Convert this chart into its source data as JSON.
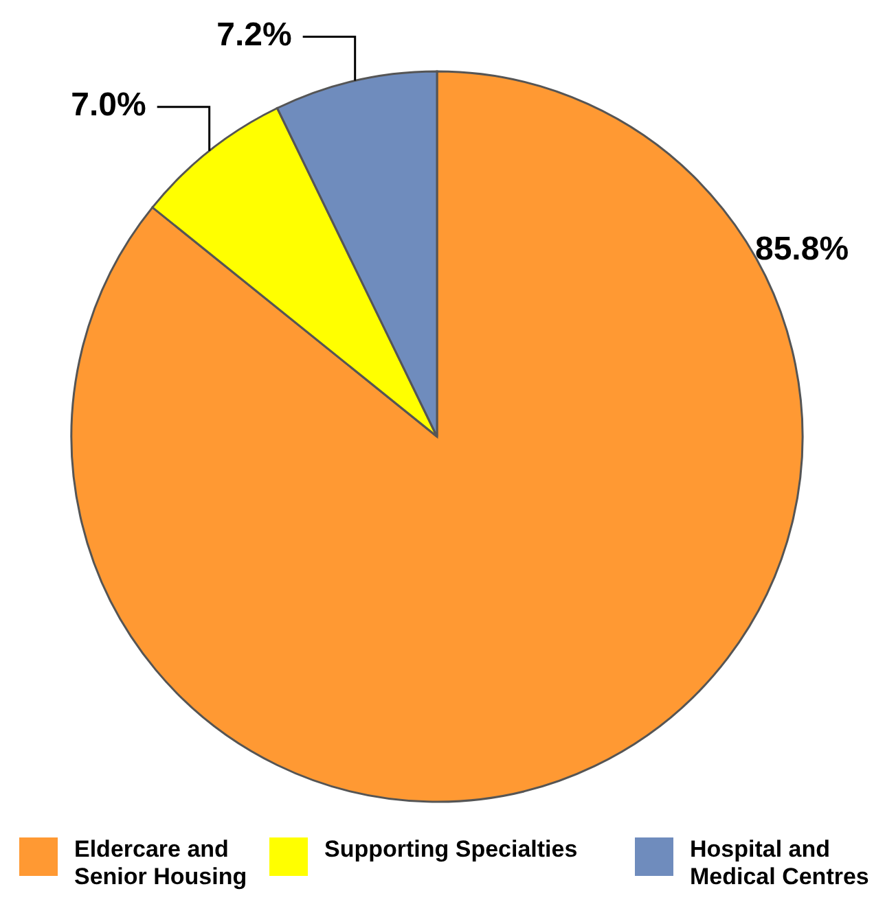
{
  "chart_data": {
    "type": "pie",
    "categories": [
      "Eldercare and Senior Housing",
      "Supporting Specialties",
      "Hospital and Medical Centres"
    ],
    "values": [
      85.8,
      7.0,
      7.2
    ],
    "colors": [
      "#ff9933",
      "#ffff00",
      "#6f8cbd"
    ],
    "value_labels": [
      "85.8%",
      "7.0%",
      "7.2%"
    ],
    "legend": "bottom"
  }
}
